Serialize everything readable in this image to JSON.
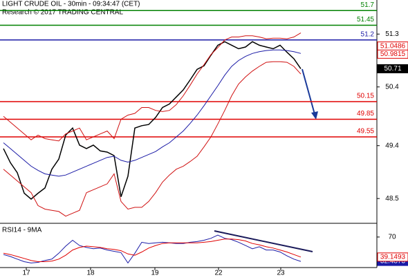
{
  "chart_data": [
    {
      "type": "line",
      "title": "LIGHT CRUDE OIL - 30min - 09:34:47 (CET)",
      "subtitle": "Research © 2017 TRADING CENTRAL",
      "x": [
        0,
        1,
        2,
        3,
        4,
        5,
        6,
        7,
        8,
        9,
        10,
        11,
        12,
        13,
        14,
        15,
        16,
        17,
        18,
        19,
        20,
        21,
        22,
        23,
        24,
        25,
        26,
        27,
        28,
        29,
        30,
        31,
        32,
        33,
        34,
        35,
        36,
        37,
        38,
        39,
        40,
        41,
        42,
        43
      ],
      "xlim": [
        -0.5,
        54
      ],
      "ylim": [
        48.09,
        51.88
      ],
      "yticks": [
        51.3,
        50.4,
        49.4,
        48.5
      ],
      "series": [
        {
          "color": "#000000",
          "values": [
            49.35,
            49.11,
            48.94,
            48.59,
            48.49,
            48.59,
            48.68,
            49.0,
            49.17,
            49.58,
            49.7,
            49.41,
            49.35,
            49.41,
            49.31,
            49.29,
            49.23,
            48.53,
            48.88,
            49.7,
            49.74,
            49.76,
            49.88,
            50.05,
            50.11,
            50.23,
            50.35,
            50.52,
            50.7,
            50.76,
            50.94,
            51.11,
            51.17,
            51.11,
            51.05,
            51.08,
            51.17,
            51.11,
            51.08,
            51.05,
            51.11,
            50.99,
            50.88,
            50.71
          ]
        },
        {
          "color": "#1a1aa6",
          "values": [
            49.45,
            49.35,
            49.25,
            49.15,
            49.05,
            48.98,
            48.92,
            48.9,
            48.88,
            48.9,
            48.95,
            49.0,
            49.05,
            49.1,
            49.15,
            49.2,
            49.22,
            49.15,
            49.12,
            49.15,
            49.2,
            49.25,
            49.3,
            49.38,
            49.45,
            49.55,
            49.65,
            49.78,
            49.92,
            50.08,
            50.25,
            50.42,
            50.6,
            50.75,
            50.85,
            50.92,
            50.97,
            51.0,
            51.02,
            51.03,
            51.03,
            51.02,
            51.0,
            50.97
          ]
        },
        {
          "color": "#d01010",
          "values": [
            49.9,
            49.8,
            49.7,
            49.6,
            49.5,
            49.58,
            49.52,
            49.5,
            49.48,
            49.6,
            49.65,
            49.7,
            49.5,
            49.55,
            49.6,
            49.65,
            49.52,
            49.85,
            49.92,
            49.95,
            50.05,
            50.05,
            50.0,
            49.98,
            50.0,
            50.1,
            50.25,
            50.43,
            50.62,
            50.78,
            50.95,
            51.07,
            51.2,
            51.25,
            51.25,
            51.27,
            51.27,
            51.25,
            51.22,
            51.23,
            51.23,
            51.22,
            51.25,
            51.32
          ]
        },
        {
          "color": "#d01010",
          "values": [
            49.0,
            48.9,
            48.8,
            48.7,
            48.6,
            48.38,
            48.32,
            48.3,
            48.28,
            48.2,
            48.25,
            48.3,
            48.6,
            48.65,
            48.7,
            48.75,
            48.92,
            48.45,
            48.32,
            48.35,
            48.35,
            48.45,
            48.6,
            48.78,
            48.9,
            49.0,
            49.05,
            49.13,
            49.22,
            49.38,
            49.55,
            49.77,
            50.0,
            50.25,
            50.45,
            50.57,
            50.67,
            50.75,
            50.82,
            50.83,
            50.83,
            50.82,
            50.75,
            50.62
          ]
        }
      ],
      "levels": [
        {
          "value": 51.7,
          "color": "#008000"
        },
        {
          "value": 51.45,
          "color": "#008000"
        },
        {
          "value": 51.2,
          "color": "#1a1aa6"
        },
        {
          "value": 50.15,
          "color": "#e00000"
        },
        {
          "value": 49.85,
          "color": "#e00000"
        },
        {
          "value": 49.55,
          "color": "#e00000"
        }
      ],
      "price_labels": [
        {
          "value": 51.0486,
          "color": "#e00000"
        },
        {
          "value": 50.9815,
          "color": "#e00000"
        }
      ]
    },
    {
      "type": "line",
      "title": "RSI14 - 9MA",
      "x": [
        0,
        1,
        2,
        3,
        4,
        5,
        6,
        7,
        8,
        9,
        10,
        11,
        12,
        13,
        14,
        15,
        16,
        17,
        18,
        19,
        20,
        21,
        22,
        23,
        24,
        25,
        26,
        27,
        28,
        29,
        30,
        31,
        32,
        33,
        34,
        35,
        36,
        37,
        38,
        39,
        40,
        41,
        42,
        43
      ],
      "xlim": [
        -0.5,
        54
      ],
      "xticks": [
        {
          "value": 3.3,
          "label": "17"
        },
        {
          "value": 12.6,
          "label": "18"
        },
        {
          "value": 21.9,
          "label": "19"
        },
        {
          "value": 31.1,
          "label": "22"
        },
        {
          "value": 40.1,
          "label": "23"
        }
      ],
      "ylim": [
        23,
        89
      ],
      "yticks": [
        70
      ],
      "series": [
        {
          "color": "#1a1aa6",
          "values": [
            43,
            40,
            36,
            32,
            30,
            31,
            34,
            36,
            45,
            56,
            65,
            57,
            54,
            52,
            53,
            50,
            48,
            46,
            30,
            45,
            62,
            60,
            61,
            62,
            61,
            60,
            60,
            62,
            63,
            65,
            68,
            73,
            68,
            66,
            62,
            57,
            52,
            55,
            50,
            50,
            47,
            41,
            36,
            32.4873
          ]
        },
        {
          "color": "#e00000",
          "values": [
            45,
            43,
            40,
            37,
            34,
            32,
            32,
            33,
            36,
            42,
            50,
            54,
            56,
            55,
            54,
            52,
            51,
            49,
            44,
            42,
            47,
            53,
            57,
            60,
            61,
            61,
            61,
            61,
            61,
            62,
            63,
            65,
            67,
            67,
            66,
            64,
            60,
            58,
            55,
            53,
            50,
            47,
            43,
            39.1493
          ]
        }
      ]
    }
  ]
}
